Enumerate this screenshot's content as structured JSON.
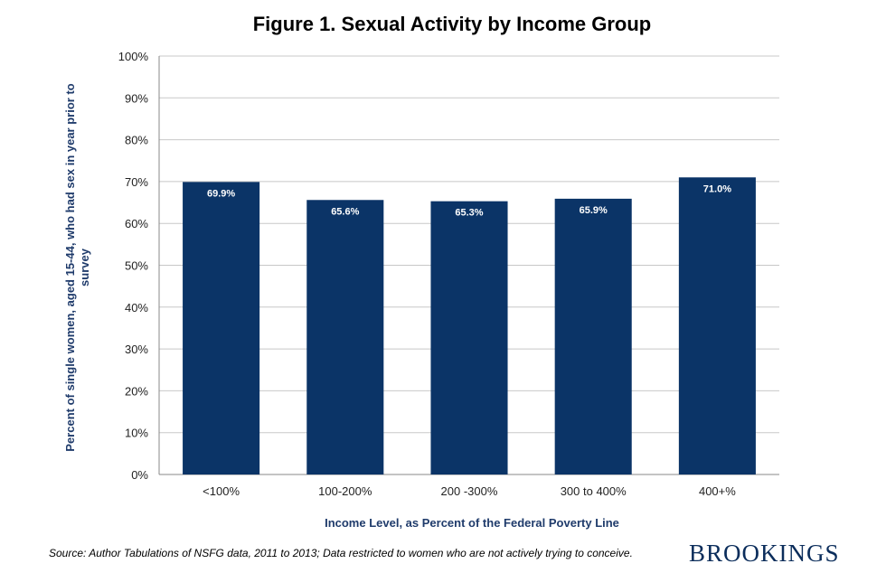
{
  "chart_data": {
    "type": "bar",
    "title": "Figure 1. Sexual Activity by Income Group",
    "xlabel": "Income Level, as Percent of the Federal Poverty Line",
    "ylabel_lines": [
      "Percent of single women, aged 15-44, who had sex in year prior to",
      "survey"
    ],
    "categories": [
      "<100%",
      "100-200%",
      "200 -300%",
      "300 to 400%",
      "400+%"
    ],
    "values": [
      69.9,
      65.6,
      65.3,
      65.9,
      71.0
    ],
    "value_labels": [
      "69.9%",
      "65.6%",
      "65.3%",
      "65.9%",
      "71.0%"
    ],
    "ylim": [
      0,
      100
    ],
    "yticks": [
      "0%",
      "10%",
      "20%",
      "30%",
      "40%",
      "50%",
      "60%",
      "70%",
      "80%",
      "90%",
      "100%"
    ],
    "grid": true,
    "bar_color": "#0b3467",
    "legend": "none"
  },
  "footer": {
    "source": "Source: Author Tabulations of NSFG data, 2011 to 2013; Data restricted to women who are not actively trying to conceive.",
    "logo_text": "BROOKINGS"
  }
}
